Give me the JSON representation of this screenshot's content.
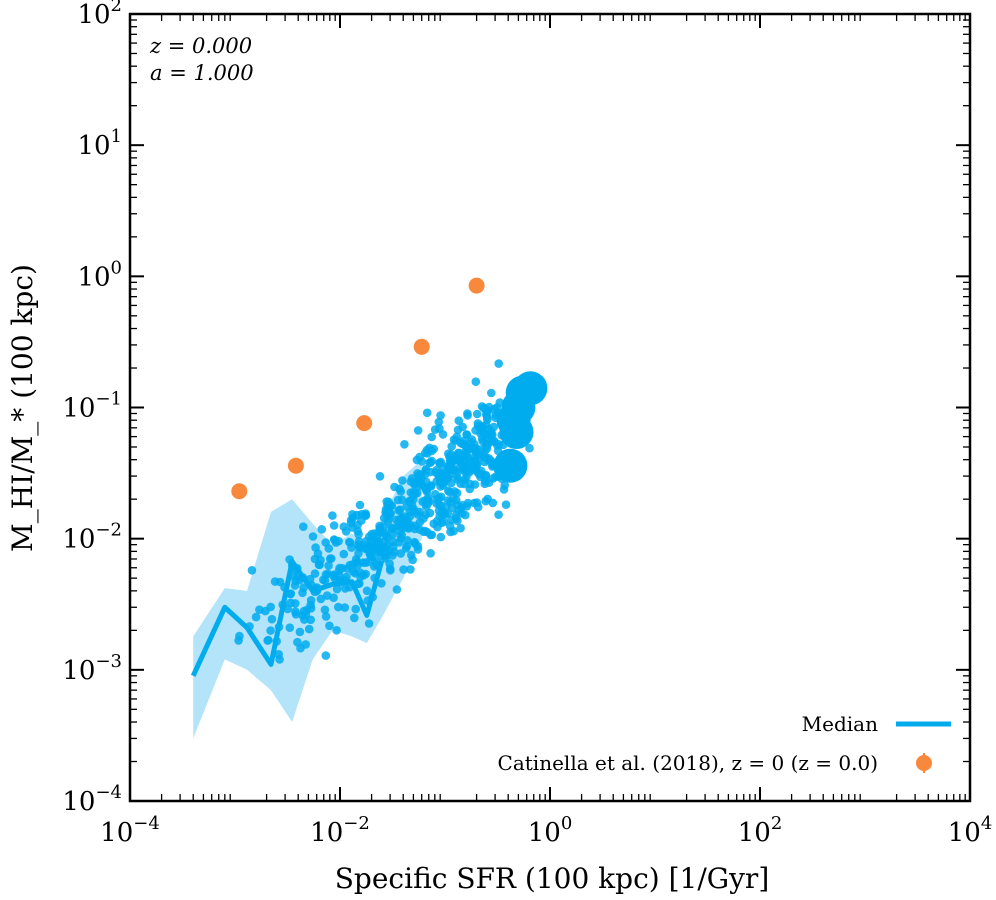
{
  "chart_data": {
    "type": "scatter",
    "xlabel": "Specific SFR (100 kpc) [1/Gyr]",
    "ylabel": "M_HI/M_* (100 kpc)",
    "xscale": "log",
    "yscale": "log",
    "xlim": [
      0.0001,
      10000
    ],
    "ylim": [
      0.0001,
      100
    ],
    "xticks": [
      0.0001,
      0.01,
      1,
      100,
      10000
    ],
    "xtick_labels": [
      {
        "base": "10",
        "exp": "−4"
      },
      {
        "base": "10",
        "exp": "−2"
      },
      {
        "base": "10",
        "exp": "0"
      },
      {
        "base": "10",
        "exp": "2"
      },
      {
        "base": "10",
        "exp": "4"
      }
    ],
    "yticks": [
      0.0001,
      0.001,
      0.01,
      0.1,
      1,
      10,
      100
    ],
    "ytick_labels": [
      {
        "base": "10",
        "exp": "−4"
      },
      {
        "base": "10",
        "exp": "−3"
      },
      {
        "base": "10",
        "exp": "−2"
      },
      {
        "base": "10",
        "exp": "−1"
      },
      {
        "base": "10",
        "exp": "0"
      },
      {
        "base": "10",
        "exp": "1"
      },
      {
        "base": "10",
        "exp": "2"
      }
    ],
    "annotations": [
      "z = 0.000",
      "a = 1.000"
    ],
    "legend_placement": "lower-right",
    "colors": {
      "simulation": "#00acee",
      "band": "#b3e4f9",
      "observation": "#f7883c"
    },
    "median": {
      "name": "Median",
      "x": [
        0.0004,
        0.0008,
        0.0013,
        0.0022,
        0.0035,
        0.0055,
        0.0085,
        0.013,
        0.018,
        0.025
      ],
      "y": [
        0.0009,
        0.003,
        0.0021,
        0.0011,
        0.0067,
        0.004,
        0.0045,
        0.0047,
        0.0026,
        0.0068
      ]
    },
    "band": {
      "x": [
        0.0004,
        0.0008,
        0.0013,
        0.0022,
        0.0035,
        0.0055,
        0.0085,
        0.013,
        0.018,
        0.025,
        0.04,
        0.06
      ],
      "upper": [
        0.0018,
        0.0042,
        0.004,
        0.016,
        0.02,
        0.013,
        0.009,
        0.011,
        0.009,
        0.014,
        0.03,
        0.04
      ],
      "lower": [
        0.0003,
        0.0012,
        0.001,
        0.0007,
        0.0004,
        0.0012,
        0.002,
        0.0018,
        0.0016,
        0.0025,
        0.005,
        0.01
      ]
    },
    "large_points": {
      "x": [
        0.55,
        0.65,
        0.5,
        0.45,
        0.48,
        0.42
      ],
      "y": [
        0.13,
        0.14,
        0.1,
        0.08,
        0.065,
        0.036
      ]
    },
    "observations": {
      "name": "Catinella et al. (2018), z = 0 (z = 0.0)",
      "x": [
        0.0011,
        0.0038,
        0.017,
        0.06,
        0.2
      ],
      "y": [
        0.023,
        0.036,
        0.076,
        0.29,
        0.85
      ]
    }
  }
}
